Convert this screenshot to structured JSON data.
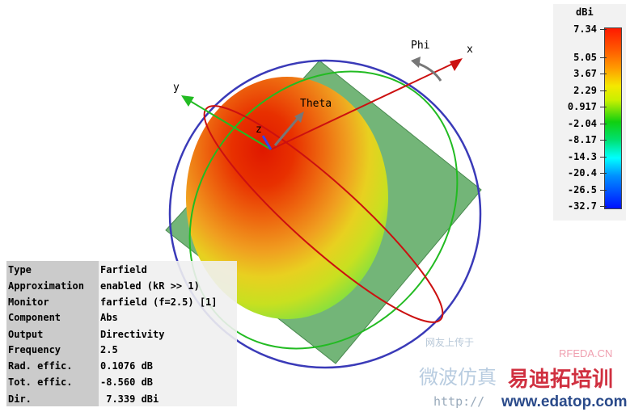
{
  "scene": {
    "axes": {
      "x": "x",
      "y": "y",
      "z": "z",
      "phi": "Phi",
      "theta": "Theta"
    }
  },
  "legend": {
    "unit": "dBi",
    "ticks": [
      "7.34",
      "5.05",
      "3.67",
      "2.29",
      "0.917",
      "-2.04",
      "-8.17",
      "-14.3",
      "-20.4",
      "-26.5",
      "-32.7"
    ],
    "max_color": "#ff1a00",
    "min_color": "#0010ff"
  },
  "info": {
    "rows": [
      {
        "key": "Type",
        "value": "Farfield"
      },
      {
        "key": "Approximation",
        "value": "enabled (kR >> 1)"
      },
      {
        "key": "Monitor",
        "value": "farfield (f=2.5) [1]"
      },
      {
        "key": "Component",
        "value": "Abs"
      },
      {
        "key": "Output",
        "value": "Directivity"
      },
      {
        "key": "Frequency",
        "value": "2.5"
      },
      {
        "key": "Rad. effic.",
        "value": "0.1076 dB"
      },
      {
        "key": "Tot. effic.",
        "value": "-8.560 dB"
      },
      {
        "key": "Dir.",
        "value": " 7.339 dBi"
      }
    ]
  },
  "watermark": {
    "line1": "网友上传于",
    "brand": "RFEDA.CN",
    "cn1": "微波仿真",
    "cn2": "易迪拓培训",
    "url1": "http://",
    "url2": "www.edatop.com"
  }
}
